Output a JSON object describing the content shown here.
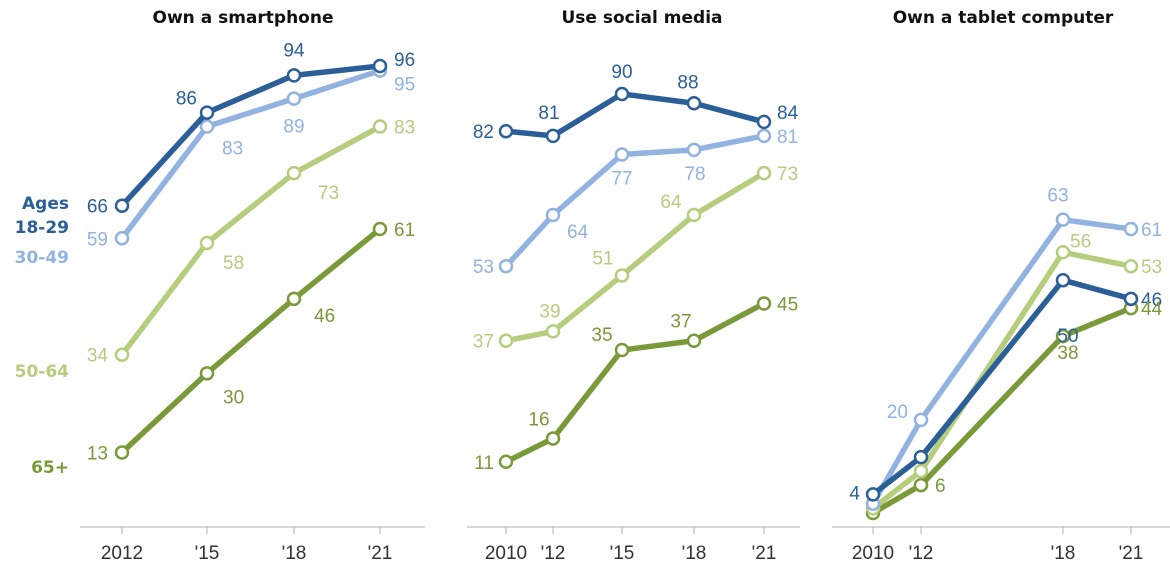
{
  "chart_data": [
    {
      "type": "line",
      "title": "Own a smartphone",
      "x": [
        "2012",
        "'15",
        "'18",
        "'21"
      ],
      "ylim": [
        0,
        100
      ],
      "series": [
        {
          "name": "18-29",
          "values": [
            66,
            86,
            94,
            96
          ],
          "color": "#2c5f98"
        },
        {
          "name": "30-49",
          "values": [
            59,
            83,
            89,
            95
          ],
          "color": "#92b3e0"
        },
        {
          "name": "50-64",
          "values": [
            34,
            58,
            73,
            83
          ],
          "color": "#b5cd7c"
        },
        {
          "name": "65+",
          "values": [
            13,
            30,
            46,
            61
          ],
          "color": "#7a9a3a"
        }
      ]
    },
    {
      "type": "line",
      "title": "Use social media",
      "x": [
        "2010",
        "'12",
        "'15",
        "'18",
        "'21"
      ],
      "ylim": [
        0,
        100
      ],
      "series": [
        {
          "name": "18-29",
          "values": [
            82,
            81,
            90,
            88,
            84
          ],
          "color": "#2c5f98"
        },
        {
          "name": "30-49",
          "values": [
            53,
            64,
            77,
            78,
            81
          ],
          "color": "#92b3e0"
        },
        {
          "name": "50-64",
          "values": [
            37,
            39,
            51,
            64,
            73
          ],
          "color": "#b5cd7c"
        },
        {
          "name": "65+",
          "values": [
            11,
            16,
            35,
            37,
            45
          ],
          "color": "#7a9a3a"
        }
      ]
    },
    {
      "type": "line",
      "title": "Own a tablet computer",
      "x": [
        "2010",
        "'12",
        "'18",
        "'21"
      ],
      "ylim": [
        0,
        100
      ],
      "series": [
        {
          "name": "18-29",
          "values": [
            4,
            null,
            50,
            46
          ],
          "color": "#2c5f98"
        },
        {
          "name": "30-49",
          "values": [
            null,
            20,
            63,
            61
          ],
          "color": "#92b3e0"
        },
        {
          "name": "50-64",
          "values": [
            null,
            null,
            56,
            53
          ],
          "color": "#b5cd7c"
        },
        {
          "name": "65+",
          "values": [
            null,
            6,
            38,
            44
          ],
          "color": "#7a9a3a"
        }
      ]
    }
  ],
  "legend": {
    "heading": "Ages",
    "items": [
      {
        "label": "18-29",
        "color": "#2c5f98"
      },
      {
        "label": "30-49",
        "color": "#92b3e0"
      },
      {
        "label": "50-64",
        "color": "#b5cd7c"
      },
      {
        "label": "65+",
        "color": "#7a9a3a"
      }
    ]
  }
}
